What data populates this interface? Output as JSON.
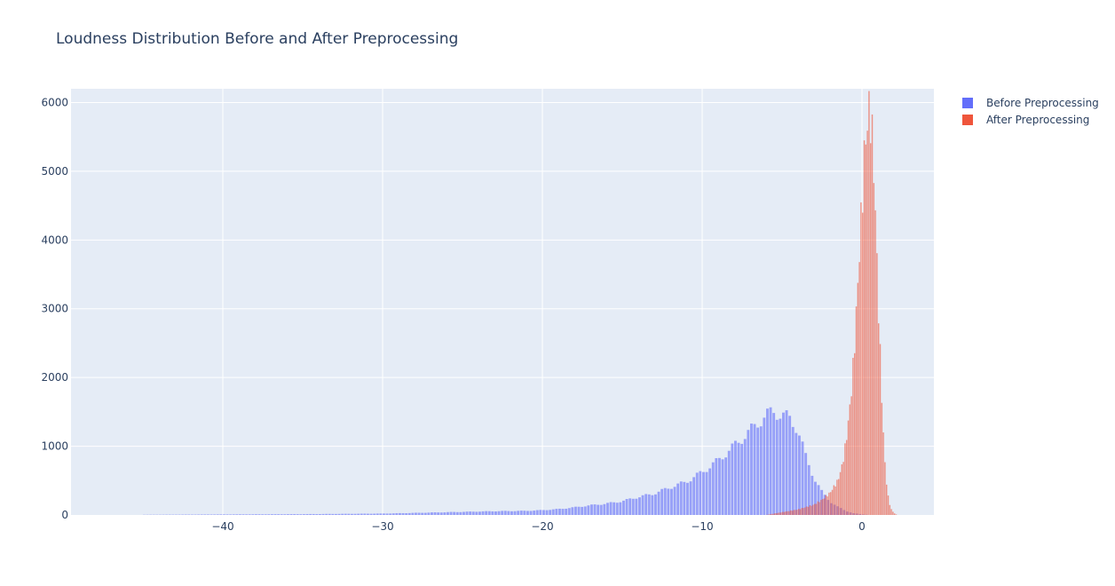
{
  "chart_data": {
    "type": "histogram",
    "title": "Loudness Distribution Before and After Preprocessing",
    "xlabel": "",
    "ylabel": "",
    "xlim": [
      -49.5,
      4.5
    ],
    "ylim": [
      0,
      6200
    ],
    "x_ticks": [
      -40,
      -30,
      -20,
      -10,
      0
    ],
    "x_tick_labels": [
      "−40",
      "−30",
      "−20",
      "−10",
      "0"
    ],
    "y_ticks": [
      0,
      1000,
      2000,
      3000,
      4000,
      5000,
      6000
    ],
    "y_tick_labels": [
      "0",
      "1000",
      "2000",
      "3000",
      "4000",
      "5000",
      "6000"
    ],
    "grid": true,
    "legend_position": "top-right",
    "barmode": "overlay",
    "series": [
      {
        "name": "Before Preprocessing",
        "color": "#636efa",
        "bin_width": 0.2,
        "bins": [
          {
            "x": -45,
            "y": 3
          },
          {
            "x": -40,
            "y": 8
          },
          {
            "x": -35,
            "y": 12
          },
          {
            "x": -30,
            "y": 20
          },
          {
            "x": -27,
            "y": 35
          },
          {
            "x": -25,
            "y": 45
          },
          {
            "x": -23,
            "y": 55
          },
          {
            "x": -21,
            "y": 60
          },
          {
            "x": -20,
            "y": 70
          },
          {
            "x": -19,
            "y": 85
          },
          {
            "x": -18,
            "y": 110
          },
          {
            "x": -17,
            "y": 140
          },
          {
            "x": -16,
            "y": 165
          },
          {
            "x": -15,
            "y": 200
          },
          {
            "x": -14,
            "y": 260
          },
          {
            "x": -13,
            "y": 310
          },
          {
            "x": -12,
            "y": 400
          },
          {
            "x": -11,
            "y": 480
          },
          {
            "x": -10,
            "y": 620
          },
          {
            "x": -9,
            "y": 790
          },
          {
            "x": -8,
            "y": 1000
          },
          {
            "x": -7,
            "y": 1220
          },
          {
            "x": -6,
            "y": 1450
          },
          {
            "x": -5.5,
            "y": 1500
          },
          {
            "x": -5,
            "y": 1460
          },
          {
            "x": -4.5,
            "y": 1400
          },
          {
            "x": -4,
            "y": 1250
          },
          {
            "x": -3.5,
            "y": 850
          },
          {
            "x": -3,
            "y": 550
          },
          {
            "x": -2.5,
            "y": 340
          },
          {
            "x": -2,
            "y": 200
          },
          {
            "x": -1.5,
            "y": 120
          },
          {
            "x": -1,
            "y": 60
          },
          {
            "x": -0.5,
            "y": 25
          },
          {
            "x": 0,
            "y": 10
          },
          {
            "x": 0.5,
            "y": 0
          }
        ]
      },
      {
        "name": "After Preprocessing",
        "color": "#ef553b",
        "bin_width": 0.1,
        "bins": [
          {
            "x": -6,
            "y": 0
          },
          {
            "x": -5.5,
            "y": 20
          },
          {
            "x": -5,
            "y": 40
          },
          {
            "x": -4,
            "y": 80
          },
          {
            "x": -3,
            "y": 150
          },
          {
            "x": -2.5,
            "y": 220
          },
          {
            "x": -2,
            "y": 320
          },
          {
            "x": -1.5,
            "y": 500
          },
          {
            "x": -1.2,
            "y": 750
          },
          {
            "x": -1,
            "y": 1050
          },
          {
            "x": -0.8,
            "y": 1450
          },
          {
            "x": -0.6,
            "y": 1950
          },
          {
            "x": -0.4,
            "y": 2700
          },
          {
            "x": -0.2,
            "y": 3600
          },
          {
            "x": 0,
            "y": 4500
          },
          {
            "x": 0.2,
            "y": 5400
          },
          {
            "x": 0.4,
            "y": 5800
          },
          {
            "x": 0.5,
            "y": 5920
          },
          {
            "x": 0.6,
            "y": 5700
          },
          {
            "x": 0.8,
            "y": 4800
          },
          {
            "x": 1.0,
            "y": 3300
          },
          {
            "x": 1.2,
            "y": 2000
          },
          {
            "x": 1.4,
            "y": 900
          },
          {
            "x": 1.6,
            "y": 320
          },
          {
            "x": 1.8,
            "y": 100
          },
          {
            "x": 2.0,
            "y": 30
          },
          {
            "x": 2.2,
            "y": 0
          }
        ]
      }
    ]
  }
}
